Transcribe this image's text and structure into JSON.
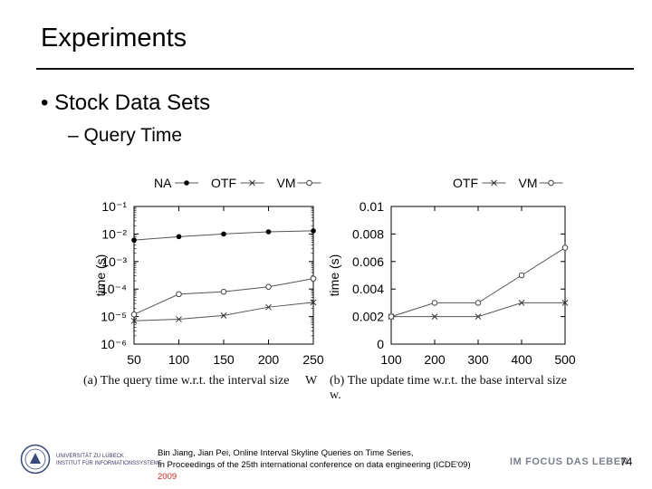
{
  "slide": {
    "title": "Experiments",
    "bullet1": "• Stock Data Sets",
    "bullet2": "– Query Time",
    "citation_line1": "Bin Jiang, Jian Pei, Online Interval Skyline Queries on Time Series,",
    "citation_line2": "In Proceedings of the 25th international conference on data engineering (ICDE'09)",
    "citation_year": "2009",
    "university_line1": "UNIVERSITÄT ZU LÜBECK",
    "university_line2": "INSTITUT FÜR INFORMATIONSSYSTEME",
    "motto": "IM FOCUS DAS LEBEN",
    "page_number": "74"
  },
  "chart_data": [
    {
      "type": "line",
      "caption": "(a) The query time w.r.t. the interval size",
      "caption_extra": "W",
      "ylabel": "time (s)",
      "yscale": "log",
      "ylim": [
        1e-06,
        0.1
      ],
      "ytick_labels": [
        "10⁻⁶",
        "10⁻⁵",
        "10⁻⁴",
        "10⁻³",
        "10⁻²",
        "10⁻¹"
      ],
      "x": [
        50,
        100,
        150,
        200,
        250
      ],
      "xtick_labels": [
        "50",
        "100",
        "150",
        "200",
        "250"
      ],
      "legend_position": "top",
      "series": [
        {
          "name": "NA",
          "marker": "dot",
          "values": [
            0.006,
            0.008,
            0.01,
            0.012,
            0.013
          ]
        },
        {
          "name": "OTF",
          "marker": "cross",
          "values": [
            7e-06,
            8e-06,
            1.1e-05,
            2.2e-05,
            3.3e-05
          ]
        },
        {
          "name": "VM",
          "marker": "circle",
          "values": [
            1.2e-05,
            6.5e-05,
            8e-05,
            0.00012,
            0.00024
          ]
        }
      ]
    },
    {
      "type": "line",
      "caption": "(b) The update time w.r.t. the base interval size",
      "caption_extra": "w.",
      "ylabel": "time (s)",
      "yscale": "linear",
      "ylim": [
        0,
        0.01
      ],
      "ytick_labels": [
        "0",
        "0.002",
        "0.004",
        "0.006",
        "0.008",
        "0.01"
      ],
      "x": [
        100,
        200,
        300,
        400,
        500
      ],
      "xtick_labels": [
        "100",
        "200",
        "300",
        "400",
        "500"
      ],
      "legend_position": "top",
      "series": [
        {
          "name": "OTF",
          "marker": "cross",
          "values": [
            0.002,
            0.002,
            0.002,
            0.003,
            0.003
          ]
        },
        {
          "name": "VM",
          "marker": "circle",
          "values": [
            0.002,
            0.003,
            0.003,
            0.005,
            0.007
          ]
        }
      ]
    }
  ],
  "colors": {
    "series_line": "#555555",
    "accent": "#c8281e",
    "motto": "#7a7f8c"
  }
}
